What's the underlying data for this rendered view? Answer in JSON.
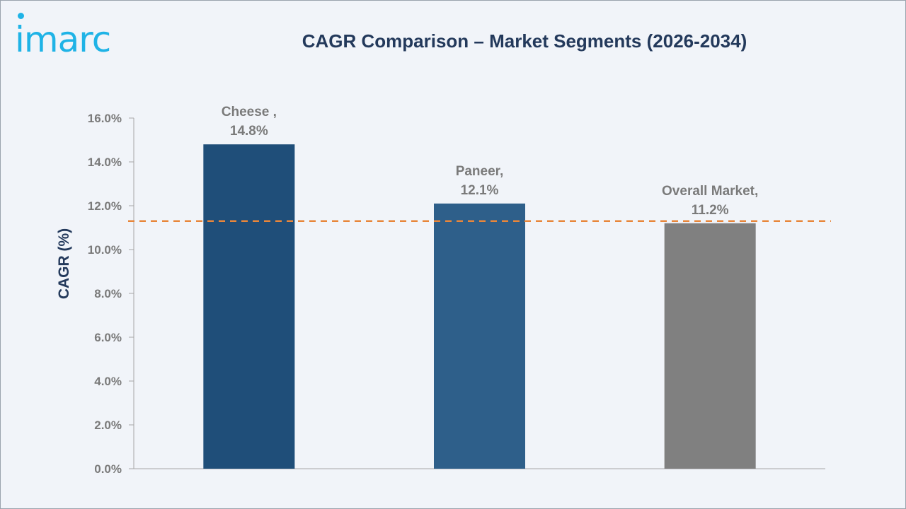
{
  "logo": {
    "text": "imarc",
    "color": "#1fb3e6"
  },
  "chart_data": {
    "type": "bar",
    "title": "CAGR Comparison – Market Segments (2026-2034)",
    "xlabel": "",
    "ylabel": "CAGR (%)",
    "ylim": [
      0,
      16
    ],
    "ytick_values": [
      0,
      2,
      4,
      6,
      8,
      10,
      12,
      14,
      16
    ],
    "ytick_labels": [
      "0.0%",
      "2.0%",
      "4.0%",
      "6.0%",
      "8.0%",
      "10.0%",
      "12.0%",
      "14.0%",
      "16.0%"
    ],
    "categories": [
      "Cheese",
      "Paneer",
      "Overall Market"
    ],
    "values": [
      14.8,
      12.1,
      11.2
    ],
    "data_labels": [
      [
        "Cheese ,",
        "14.8%"
      ],
      [
        "Paneer,",
        "12.1%"
      ],
      [
        "Overall Market,",
        "11.2%"
      ]
    ],
    "bar_colors": [
      "#1f4e79",
      "#2e5f8a",
      "#808080"
    ],
    "reference_line": {
      "value": 11.3,
      "style": "dashed",
      "color": "#e8863a"
    },
    "grid": false,
    "legend": "none"
  }
}
